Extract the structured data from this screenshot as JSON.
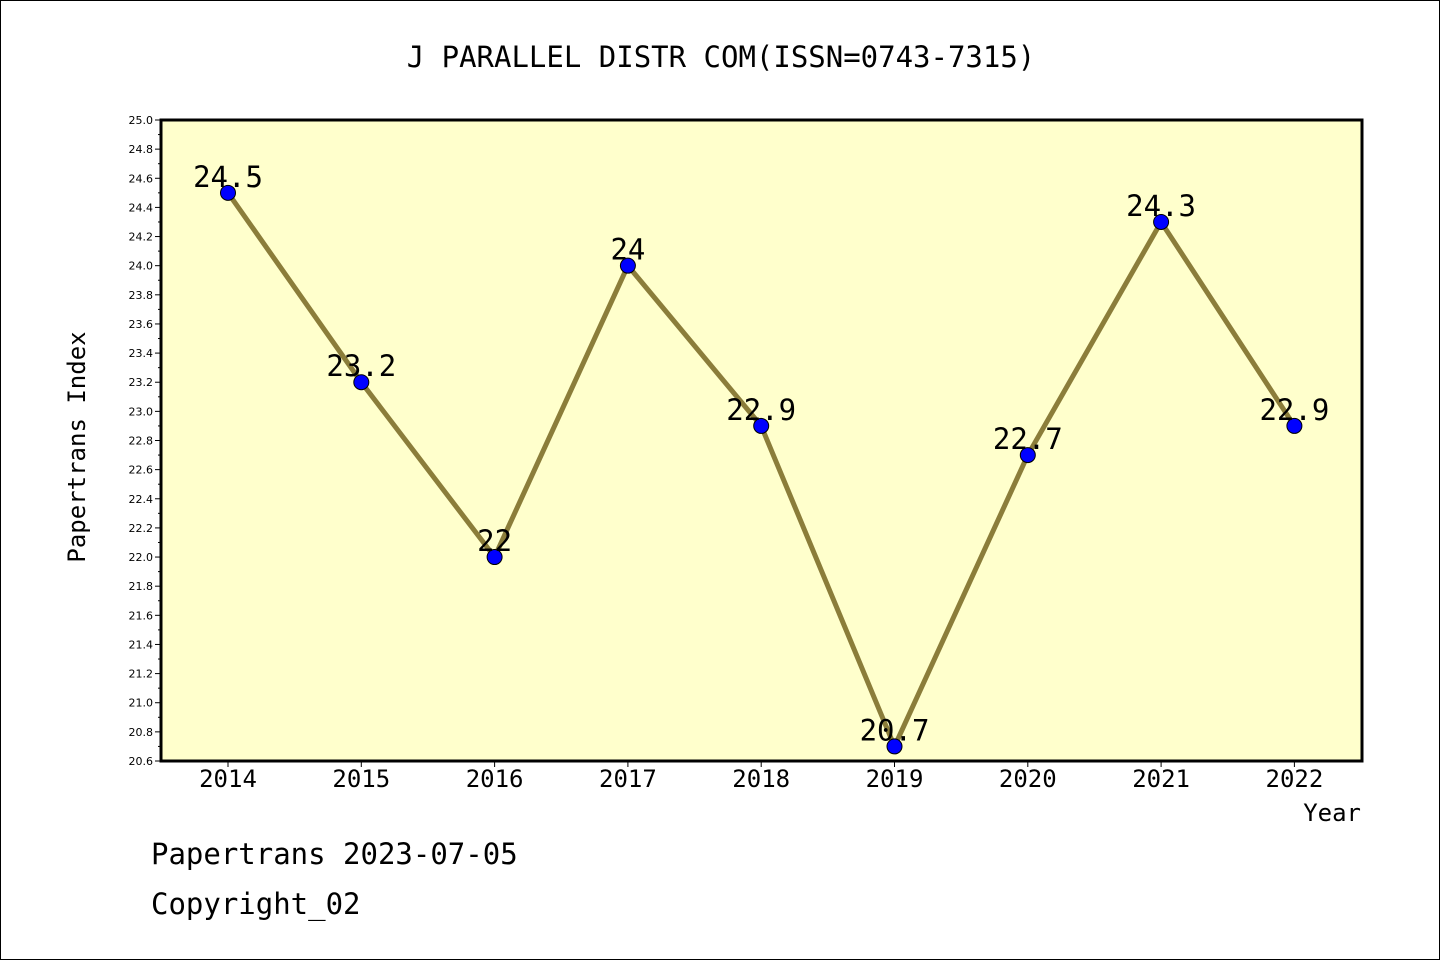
{
  "chart_data": {
    "type": "line",
    "title": "J PARALLEL DISTR COM(ISSN=0743-7315)",
    "xlabel": "Year",
    "ylabel": "Papertrans Index",
    "categories": [
      "2014",
      "2015",
      "2016",
      "2017",
      "2018",
      "2019",
      "2020",
      "2021",
      "2022"
    ],
    "values": [
      24.5,
      23.2,
      22,
      24,
      22.9,
      20.7,
      22.7,
      24.3,
      22.9
    ],
    "data_labels": [
      "24.5",
      "23.2",
      "22",
      "24",
      "22.9",
      "20.7",
      "22.7",
      "24.3",
      "22.9"
    ],
    "ylim": [
      20.6,
      25.0
    ],
    "y_ticks": [
      "20.6",
      "20.8",
      "21.0",
      "21.2",
      "21.4",
      "21.6",
      "21.8",
      "22.0",
      "22.2",
      "22.4",
      "22.6",
      "22.8",
      "23.0",
      "23.2",
      "23.4",
      "23.6",
      "23.8",
      "24.0",
      "24.2",
      "24.4",
      "24.6",
      "24.8",
      "25.0"
    ],
    "grid": false,
    "colors": {
      "plot_background": "#ffffcc",
      "line": "#8b7d3a",
      "marker": "#0000ff"
    }
  },
  "footer": {
    "date_line": "Papertrans 2023-07-05",
    "copyright_line": "Copyright_02"
  }
}
